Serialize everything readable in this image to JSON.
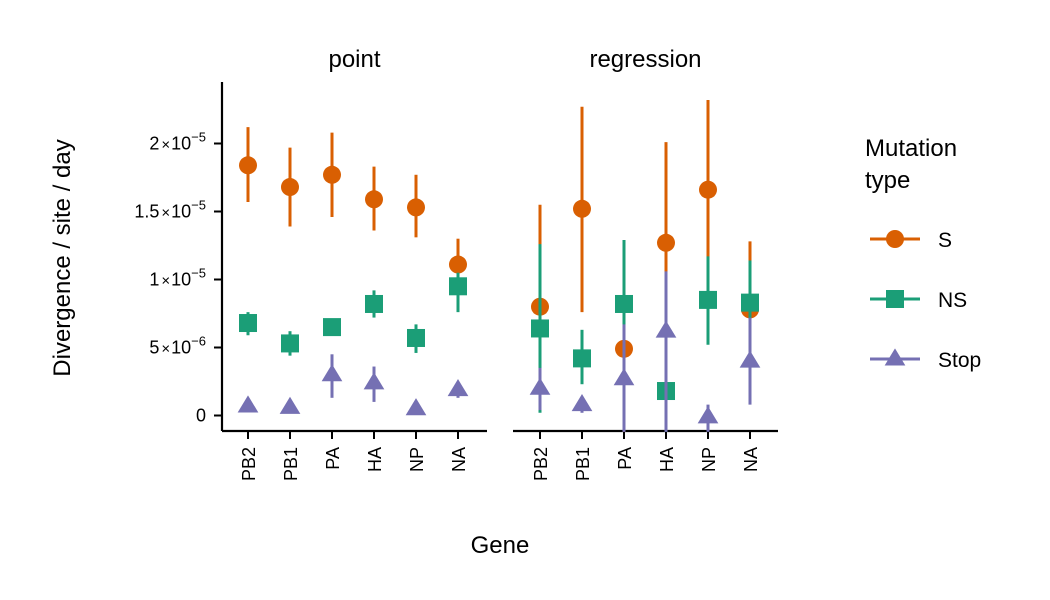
{
  "chart_data": {
    "type": "scatter",
    "subtype": "point-range, faceted",
    "ylabel": "Divergence / site / day",
    "xlabel": "Gene",
    "ylim": [
      -6e-07,
      2.42e-05
    ],
    "yticks": [
      {
        "value": 0,
        "label": "0"
      },
      {
        "value": 5e-06,
        "mantissa": "5",
        "times": "×",
        "base": "10",
        "exp": "−6"
      },
      {
        "value": 1e-05,
        "mantissa": "1",
        "times": "×",
        "base": "10",
        "exp": "−5"
      },
      {
        "value": 1.5e-05,
        "mantissa": "1.5",
        "times": "×",
        "base": "10",
        "exp": "−5"
      },
      {
        "value": 2e-05,
        "mantissa": "2",
        "times": "×",
        "base": "10",
        "exp": "−5"
      }
    ],
    "categories": [
      "PB2",
      "PB1",
      "PA",
      "HA",
      "NP",
      "NA"
    ],
    "grid": false,
    "legend": {
      "title_lines": [
        "Mutation",
        "type"
      ],
      "position": "right",
      "entries": [
        {
          "name": "S",
          "color": "#D95F02",
          "shape": "circle"
        },
        {
          "name": "NS",
          "color": "#1B9E77",
          "shape": "square"
        },
        {
          "name": "Stop",
          "color": "#7570B3",
          "shape": "triangle"
        }
      ]
    },
    "facets": [
      {
        "title": "point",
        "series": [
          {
            "name": "S",
            "values": [
              1.84e-05,
              1.68e-05,
              1.77e-05,
              1.59e-05,
              1.53e-05,
              1.11e-05
            ],
            "lower": [
              1.57e-05,
              1.39e-05,
              1.46e-05,
              1.36e-05,
              1.31e-05,
              9.3e-06
            ],
            "upper": [
              2.12e-05,
              1.97e-05,
              2.08e-05,
              1.83e-05,
              1.77e-05,
              1.3e-05
            ]
          },
          {
            "name": "NS",
            "values": [
              6.8e-06,
              5.3e-06,
              6.5e-06,
              8.2e-06,
              5.7e-06,
              9.5e-06
            ],
            "lower": [
              5.9e-06,
              4.4e-06,
              5.9e-06,
              7.2e-06,
              4.6e-06,
              7.6e-06
            ],
            "upper": [
              7.6e-06,
              6.2e-06,
              7.1e-06,
              9.2e-06,
              6.7e-06,
              1.05e-05
            ]
          },
          {
            "name": "Stop",
            "values": [
              7e-07,
              6e-07,
              3e-06,
              2.4e-06,
              5e-07,
              1.9e-06
            ],
            "lower": [
              3e-07,
              2e-07,
              1.3e-06,
              1e-06,
              2e-07,
              1.3e-06
            ],
            "upper": [
              1.1e-06,
              1e-06,
              4.5e-06,
              3.6e-06,
              8e-07,
              2.5e-06
            ]
          }
        ]
      },
      {
        "title": "regression",
        "series": [
          {
            "name": "S",
            "values": [
              8e-06,
              1.52e-05,
              4.9e-06,
              1.27e-05,
              1.66e-05,
              7.8e-06
            ],
            "lower": [
              4e-07,
              7.6e-06,
              -1.2e-06,
              4.8e-06,
              9.6e-06,
              1.5e-06
            ],
            "upper": [
              1.55e-05,
              2.27e-05,
              1.22e-05,
              2.01e-05,
              2.32e-05,
              1.28e-05
            ]
          },
          {
            "name": "NS",
            "values": [
              6.4e-06,
              4.2e-06,
              8.2e-06,
              1.8e-06,
              8.5e-06,
              8.3e-06
            ],
            "lower": [
              2e-07,
              2.3e-06,
              1.3e-06,
              -1.2e-06,
              5.2e-06,
              5.2e-06
            ],
            "upper": [
              1.26e-05,
              6.3e-06,
              1.29e-05,
              4.7e-06,
              1.17e-05,
              1.14e-05
            ]
          },
          {
            "name": "Stop",
            "values": [
              2e-06,
              8e-07,
              2.7e-06,
              6.2e-06,
              -1e-07,
              4e-06
            ],
            "lower": [
              4e-07,
              2e-07,
              -1.2e-06,
              -1.2e-06,
              -1.2e-06,
              8e-07
            ],
            "upper": [
              3.5e-06,
              1.4e-06,
              6.7e-06,
              1.06e-05,
              8e-07,
              7.2e-06
            ]
          }
        ]
      }
    ]
  }
}
